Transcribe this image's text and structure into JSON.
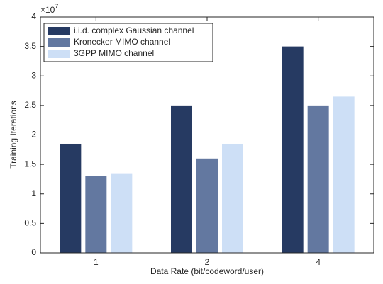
{
  "chart_data": {
    "type": "bar",
    "x_label": "Data Rate (bit/codeword/user)",
    "y_label": "Training Iterations",
    "y_offset": {
      "base": "×10",
      "exponent": "7"
    },
    "categories": [
      "1",
      "2",
      "4"
    ],
    "series": [
      {
        "name": "i.i.d. complex Gaussian channel",
        "color": "#263a62",
        "values": [
          1.85,
          2.5,
          3.5
        ]
      },
      {
        "name": "Kronecker MIMO channel",
        "color": "#6378a0",
        "values": [
          1.3,
          1.6,
          2.5
        ]
      },
      {
        "name": "3GPP MIMO channel",
        "color": "#cddff6",
        "values": [
          1.35,
          1.85,
          2.65
        ]
      }
    ],
    "ylim": [
      0,
      4
    ],
    "yticks": [
      0,
      0.5,
      1,
      1.5,
      2,
      2.5,
      3,
      3.5,
      4
    ],
    "grid": false,
    "legend": "upper-left"
  }
}
